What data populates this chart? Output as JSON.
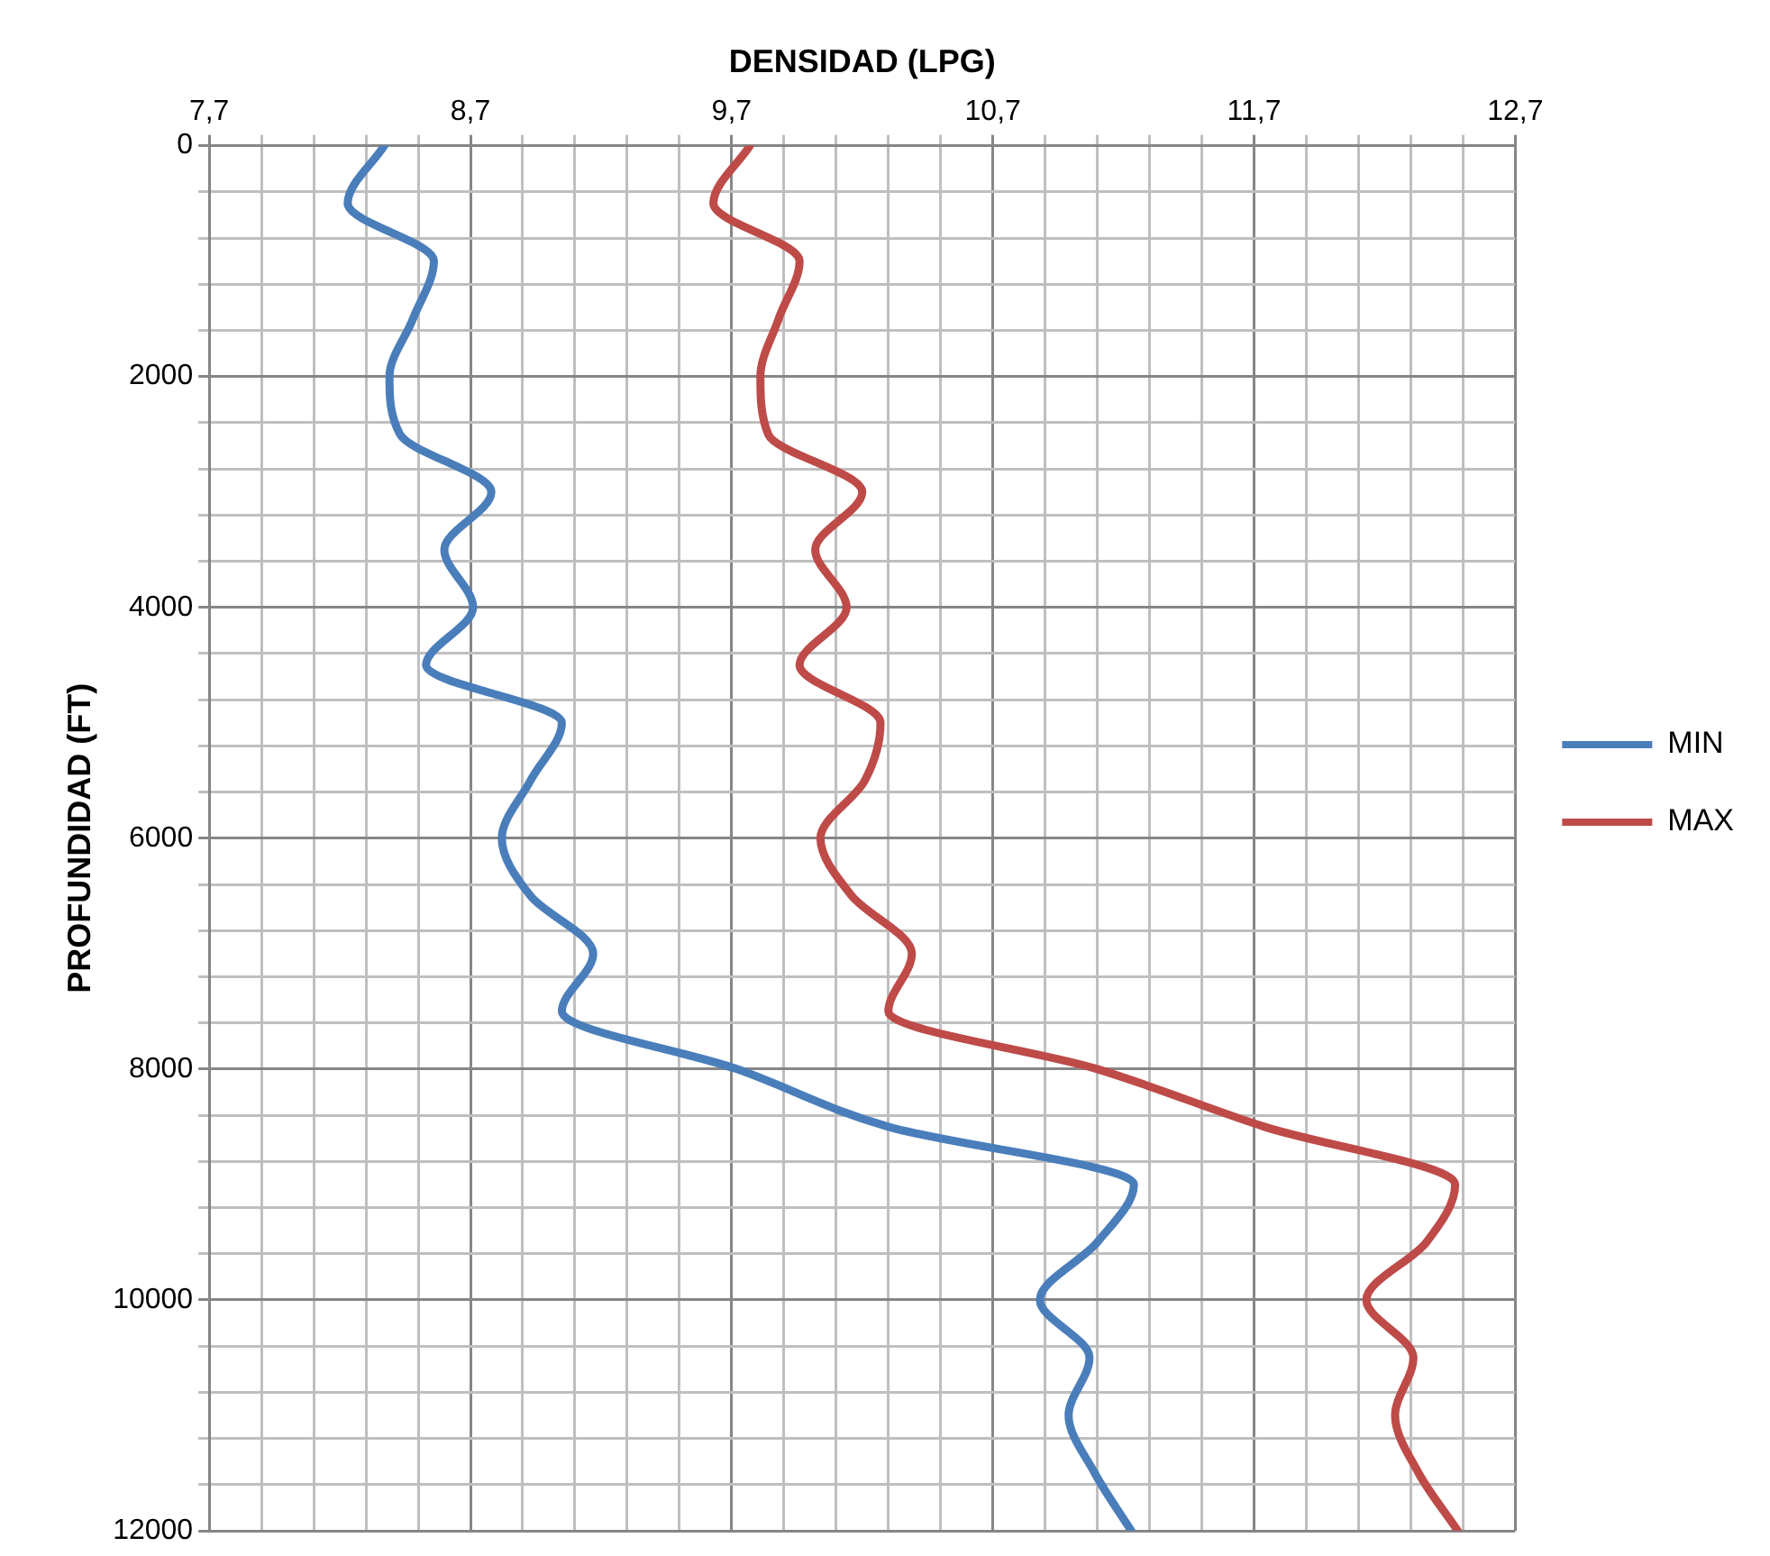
{
  "chart_data": {
    "type": "line",
    "orientation": "horizontal",
    "xlabel": "DENSIDAD (LPG)",
    "ylabel": "PROFUNDIDAD (FT)",
    "x": [
      0,
      500,
      1000,
      1500,
      2000,
      2500,
      3000,
      3500,
      4000,
      4500,
      5000,
      5500,
      6000,
      6500,
      7000,
      7500,
      8000,
      8500,
      9000,
      9500,
      10000,
      10500,
      11000,
      11500,
      12000
    ],
    "series": [
      {
        "name": "MIN",
        "color": "#4a7ebb",
        "values": [
          8.37,
          8.23,
          8.56,
          8.48,
          8.39,
          8.43,
          8.78,
          8.6,
          8.71,
          8.53,
          9.05,
          8.93,
          8.82,
          8.93,
          9.17,
          9.05,
          9.72,
          10.3,
          11.24,
          11.1,
          10.88,
          11.07,
          10.99,
          11.09,
          11.23
        ]
      },
      {
        "name": "MAX",
        "color": "#be4b48",
        "values": [
          9.77,
          9.63,
          9.96,
          9.88,
          9.81,
          9.84,
          10.2,
          10.02,
          10.14,
          9.96,
          10.27,
          10.21,
          10.04,
          10.16,
          10.39,
          10.3,
          11.1,
          11.74,
          12.47,
          12.36,
          12.13,
          12.31,
          12.24,
          12.33,
          12.48
        ]
      }
    ],
    "xlim": [
      7.7,
      12.7
    ],
    "xticks": [
      {
        "value": 7.7,
        "label": "7,7"
      },
      {
        "value": 7.9,
        "label": null
      },
      {
        "value": 8.1,
        "label": null
      },
      {
        "value": 8.3,
        "label": null
      },
      {
        "value": 8.5,
        "label": null
      },
      {
        "value": 8.7,
        "label": "8,7"
      },
      {
        "value": 8.9,
        "label": null
      },
      {
        "value": 9.1,
        "label": null
      },
      {
        "value": 9.3,
        "label": null
      },
      {
        "value": 9.5,
        "label": null
      },
      {
        "value": 9.7,
        "label": "9,7"
      },
      {
        "value": 9.9,
        "label": null
      },
      {
        "value": 10.1,
        "label": null
      },
      {
        "value": 10.3,
        "label": null
      },
      {
        "value": 10.5,
        "label": null
      },
      {
        "value": 10.7,
        "label": "10,7"
      },
      {
        "value": 10.9,
        "label": null
      },
      {
        "value": 11.1,
        "label": null
      },
      {
        "value": 11.3,
        "label": null
      },
      {
        "value": 11.5,
        "label": null
      },
      {
        "value": 11.7,
        "label": "11,7"
      },
      {
        "value": 11.9,
        "label": null
      },
      {
        "value": 12.1,
        "label": null
      },
      {
        "value": 12.3,
        "label": null
      },
      {
        "value": 12.5,
        "label": null
      },
      {
        "value": 12.7,
        "label": "12,7"
      }
    ],
    "ylim": [
      12000,
      0
    ],
    "yticks": [
      0,
      {
        "value": 400,
        "label": null
      },
      {
        "value": 800,
        "label": null
      },
      {
        "value": 1200,
        "label": null
      },
      {
        "value": 1600,
        "label": null
      },
      2000,
      {
        "value": 2400,
        "label": null
      },
      {
        "value": 2800,
        "label": null
      },
      {
        "value": 3200,
        "label": null
      },
      {
        "value": 3600,
        "label": null
      },
      4000,
      {
        "value": 4400,
        "label": null
      },
      {
        "value": 4800,
        "label": null
      },
      {
        "value": 5200,
        "label": null
      },
      {
        "value": 5600,
        "label": null
      },
      6000,
      {
        "value": 6400,
        "label": null
      },
      {
        "value": 6800,
        "label": null
      },
      {
        "value": 7200,
        "label": null
      },
      {
        "value": 7600,
        "label": null
      },
      8000,
      {
        "value": 8400,
        "label": null
      },
      {
        "value": 8800,
        "label": null
      },
      {
        "value": 9200,
        "label": null
      },
      {
        "value": 9600,
        "label": null
      },
      10000,
      {
        "value": 10400,
        "label": null
      },
      {
        "value": 10800,
        "label": null
      },
      {
        "value": 11200,
        "label": null
      },
      {
        "value": 11600,
        "label": null
      },
      12000
    ],
    "grid": true,
    "legend": "right",
    "marker": "none",
    "line_style": "solid"
  }
}
